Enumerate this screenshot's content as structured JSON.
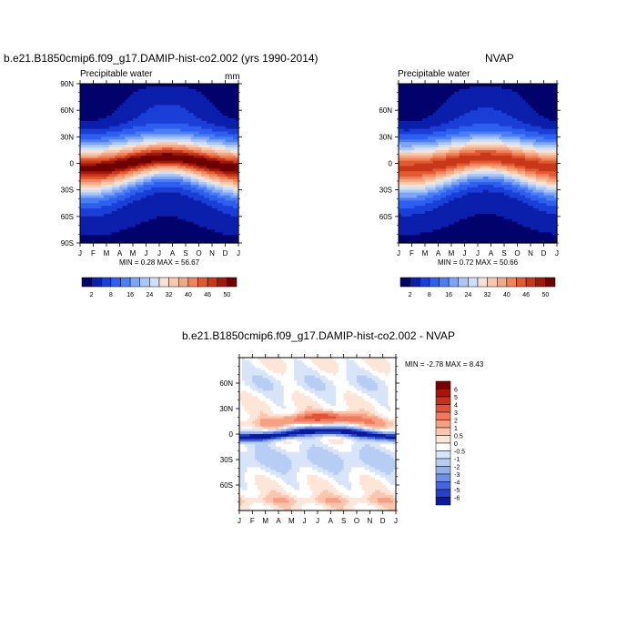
{
  "panels": [
    {
      "id": "model",
      "title": "b.e21.B1850cmip6.f09_g17.DAMIP-hist-co2.002 (yrs 1990-2014)",
      "subtitle": "Precipitable water",
      "units": "mm",
      "minmax": "MIN =   0.28 MAX =  56.67"
    },
    {
      "id": "obs",
      "title": "NVAP",
      "subtitle": "Precipitable water",
      "units": "",
      "minmax": "MIN =   0.72 MAX =  50.66"
    },
    {
      "id": "diff",
      "title": "b.e21.B1850cmip6.f09_g17.DAMIP-hist-co2.002 - NVAP",
      "subtitle": "",
      "units": "",
      "minmax": "MIN =  -2.78 MAX =   8.43"
    }
  ],
  "chart_data": [
    {
      "type": "heatmap",
      "title": "b.e21.B1850cmip6.f09_g17.DAMIP-hist-co2.002 (yrs 1990-2014)",
      "subtitle": "Precipitable water",
      "units": "mm",
      "x_ticks": [
        "J",
        "F",
        "M",
        "A",
        "M",
        "J",
        "J",
        "A",
        "S",
        "O",
        "N",
        "D",
        "J"
      ],
      "y_ticks": [
        "90N",
        "60N",
        "30N",
        "0",
        "30S",
        "60S",
        "90S"
      ],
      "ylim": [
        -90,
        90
      ],
      "colorbar": {
        "orientation": "horizontal",
        "tick_labels": [
          "2",
          "8",
          "16",
          "24",
          "32",
          "40",
          "46",
          "50"
        ],
        "colors": [
          "#03026c",
          "#0a1fab",
          "#1a3fd6",
          "#2f5ff0",
          "#4a7ef5",
          "#7ea5f5",
          "#a9c6f5",
          "#cfdff8",
          "#f7e3d6",
          "#f8c9ad",
          "#f5a885",
          "#f0845a",
          "#e25a33",
          "#c83818",
          "#a11a09",
          "#6e0000"
        ]
      },
      "min": 0.28,
      "max": 56.67
    },
    {
      "type": "heatmap",
      "title": "NVAP",
      "subtitle": "Precipitable water",
      "x_ticks": [
        "J",
        "F",
        "M",
        "A",
        "M",
        "J",
        "J",
        "A",
        "S",
        "O",
        "N",
        "D",
        "J"
      ],
      "y_ticks": [
        "60N",
        "30N",
        "0",
        "30S",
        "60S"
      ],
      "ylim": [
        -90,
        90
      ],
      "colorbar": {
        "orientation": "horizontal",
        "tick_labels": [
          "2",
          "8",
          "16",
          "24",
          "32",
          "40",
          "46",
          "50"
        ],
        "colors": [
          "#03026c",
          "#0a1fab",
          "#1a3fd6",
          "#2f5ff0",
          "#4a7ef5",
          "#7ea5f5",
          "#a9c6f5",
          "#cfdff8",
          "#f7e3d6",
          "#f8c9ad",
          "#f5a885",
          "#f0845a",
          "#e25a33",
          "#c83818",
          "#a11a09",
          "#6e0000"
        ]
      },
      "min": 0.72,
      "max": 50.66
    },
    {
      "type": "heatmap",
      "title": "b.e21.B1850cmip6.f09_g17.DAMIP-hist-co2.002 - NVAP",
      "x_ticks": [
        "J",
        "F",
        "M",
        "A",
        "M",
        "J",
        "J",
        "A",
        "S",
        "O",
        "N",
        "D",
        "J"
      ],
      "y_ticks": [
        "60N",
        "30N",
        "0",
        "30S",
        "60S"
      ],
      "ylim": [
        -90,
        90
      ],
      "colorbar": {
        "orientation": "vertical",
        "tick_labels": [
          "6",
          "5",
          "4",
          "3",
          "2",
          "1",
          "0.5",
          "0",
          "-0.5",
          "-1",
          "-2",
          "-3",
          "-4",
          "-5",
          "-6"
        ],
        "colors": [
          "#7a0000",
          "#a5150a",
          "#c8301a",
          "#e25236",
          "#f27a5c",
          "#f8a083",
          "#fbc6ad",
          "#fde6d8",
          "#ffffff",
          "#d8e4f8",
          "#b7cdf4",
          "#93b1ee",
          "#6f8fe6",
          "#4666dc",
          "#2541c8",
          "#0a1aa0"
        ]
      },
      "min": -2.78,
      "max": 8.43
    }
  ]
}
